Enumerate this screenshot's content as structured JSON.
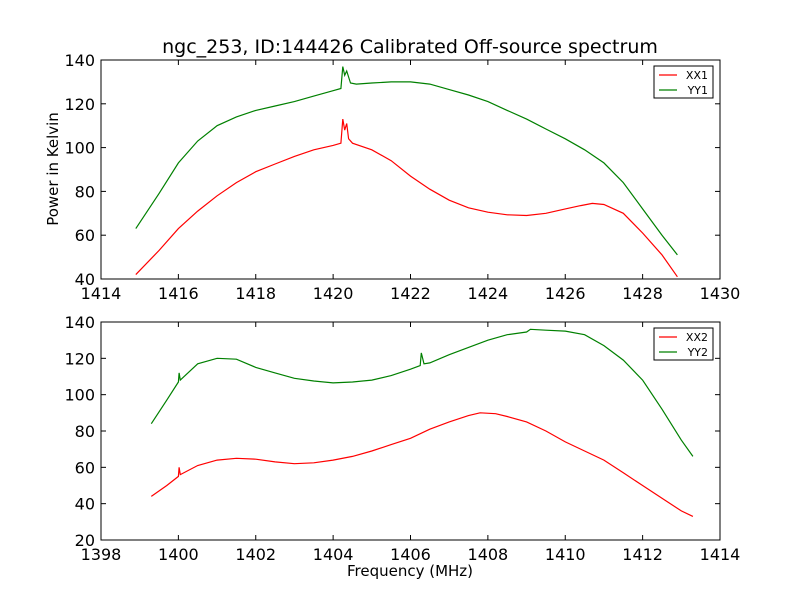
{
  "title": "ngc_253, ID:144426 Calibrated Off-source spectrum",
  "ylabel": "Power in Kelvin",
  "xlabel": "Frequency (MHz)",
  "colors": {
    "red": "#ff0000",
    "green": "#008000"
  },
  "chart_data": [
    {
      "type": "line",
      "xlim": [
        1414,
        1430
      ],
      "ylim": [
        40,
        140
      ],
      "xticks": [
        "1414",
        "1416",
        "1418",
        "1420",
        "1422",
        "1424",
        "1426",
        "1428",
        "1430"
      ],
      "yticks": [
        "40",
        "60",
        "80",
        "100",
        "120",
        "140"
      ],
      "legend_position": "top-right",
      "series": [
        {
          "name": "XX1",
          "color": "#ff0000",
          "x": [
            1414.9,
            1415.5,
            1416,
            1416.5,
            1417,
            1417.5,
            1418,
            1418.5,
            1419,
            1419.5,
            1420,
            1420.2,
            1420.25,
            1420.3,
            1420.35,
            1420.4,
            1420.5,
            1421,
            1421.5,
            1422,
            1422.5,
            1423,
            1423.5,
            1424,
            1424.5,
            1425,
            1425.5,
            1426,
            1426.4,
            1426.7,
            1427,
            1427.5,
            1428,
            1428.5,
            1428.9
          ],
          "y": [
            42,
            53,
            63,
            71,
            78,
            84,
            89,
            92.5,
            96,
            99,
            101,
            102,
            113,
            108,
            111,
            104,
            102,
            99,
            94,
            87,
            81,
            76,
            72.5,
            70.5,
            69.3,
            69,
            70,
            72,
            73.5,
            74.5,
            74,
            70,
            61,
            51,
            41
          ]
        },
        {
          "name": "YY1",
          "color": "#008000",
          "x": [
            1414.9,
            1415.5,
            1416,
            1416.5,
            1417,
            1417.5,
            1418,
            1418.5,
            1419,
            1419.5,
            1420,
            1420.2,
            1420.25,
            1420.3,
            1420.35,
            1420.45,
            1420.6,
            1421,
            1421.5,
            1422,
            1422.5,
            1423,
            1423.5,
            1424,
            1424.5,
            1425,
            1425.5,
            1426,
            1426.5,
            1427,
            1427.5,
            1428,
            1428.5,
            1428.9
          ],
          "y": [
            63,
            79,
            93,
            103,
            110,
            114,
            117,
            119,
            121,
            123.5,
            126,
            127,
            137,
            133,
            135,
            129.5,
            129,
            129.5,
            130,
            130,
            129,
            126.5,
            124,
            121,
            117,
            113,
            108.5,
            104,
            99,
            93,
            84,
            72,
            60,
            51
          ]
        }
      ]
    },
    {
      "type": "line",
      "xlim": [
        1398,
        1414
      ],
      "ylim": [
        20,
        140
      ],
      "xticks": [
        "1398",
        "1400",
        "1402",
        "1404",
        "1406",
        "1408",
        "1410",
        "1412",
        "1414"
      ],
      "yticks": [
        "20",
        "40",
        "60",
        "80",
        "100",
        "120",
        "140"
      ],
      "legend_position": "top-right",
      "series": [
        {
          "name": "XX2",
          "color": "#ff0000",
          "x": [
            1399.3,
            1399.7,
            1400,
            1400.02,
            1400.05,
            1400.5,
            1401,
            1401.5,
            1402,
            1402.5,
            1403,
            1403.5,
            1404,
            1404.5,
            1405,
            1405.5,
            1406,
            1406.5,
            1407,
            1407.5,
            1407.8,
            1408.2,
            1408.5,
            1409,
            1409.5,
            1410,
            1410.5,
            1411,
            1411.5,
            1412,
            1412.5,
            1413,
            1413.3
          ],
          "y": [
            44,
            50,
            55,
            60,
            56,
            61,
            64,
            65,
            64.5,
            63,
            62,
            62.5,
            64,
            66,
            69,
            72.5,
            76,
            81,
            85,
            88.5,
            90,
            89.5,
            88,
            85,
            80,
            74,
            69,
            64,
            57,
            50,
            43,
            36,
            33
          ]
        },
        {
          "name": "YY2",
          "color": "#008000",
          "x": [
            1399.3,
            1399.7,
            1400,
            1400.02,
            1400.05,
            1400.5,
            1401,
            1401.5,
            1402,
            1402.5,
            1403,
            1403.5,
            1404,
            1404.5,
            1405,
            1405.5,
            1406,
            1406.25,
            1406.28,
            1406.35,
            1406.5,
            1407,
            1407.5,
            1408,
            1408.5,
            1409,
            1409.1,
            1409.5,
            1410,
            1410.5,
            1411,
            1411.5,
            1412,
            1412.5,
            1413,
            1413.3
          ],
          "y": [
            84,
            97,
            107,
            112,
            108,
            117,
            120,
            119.5,
            115,
            112,
            109,
            107.5,
            106.5,
            107,
            108,
            110.5,
            114,
            116,
            123,
            117,
            117.5,
            122,
            126,
            130,
            133,
            134.5,
            136,
            135.5,
            135,
            133,
            127,
            119,
            108,
            92,
            75,
            66
          ]
        }
      ]
    }
  ]
}
